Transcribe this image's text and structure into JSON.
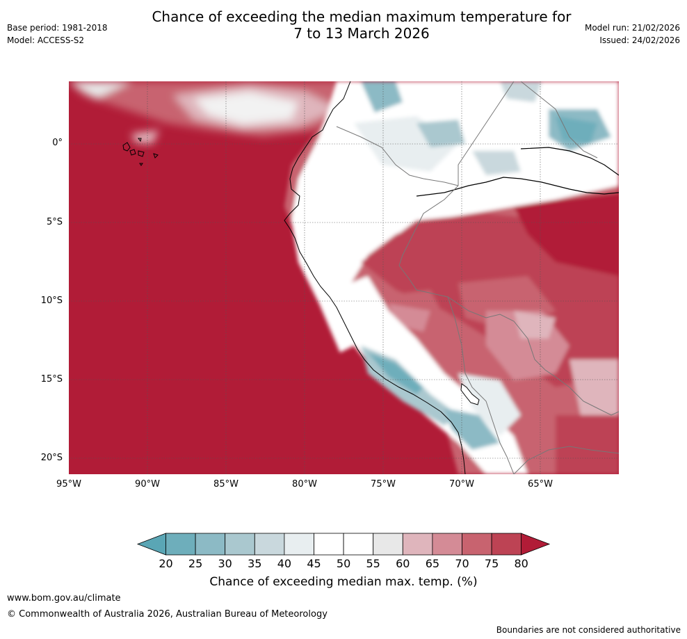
{
  "header": {
    "title_line1": "Chance of exceeding the median maximum temperature for",
    "title_line2": "7 to 13 March 2026",
    "base_period": "Base period: 1981-2018",
    "model": "Model: ACCESS-S2",
    "model_run": "Model run: 21/02/2026",
    "issued": "Issued: 24/02/2026"
  },
  "map": {
    "latitude_labels": [
      "0°",
      "5°S",
      "10°S",
      "15°S",
      "20°S"
    ],
    "longitude_labels": [
      "95°W",
      "90°W",
      "85°W",
      "80°W",
      "75°W",
      "70°W",
      "65°W"
    ],
    "ocean_color": "#b11c37"
  },
  "colorbar": {
    "tick_labels": [
      "20",
      "25",
      "30",
      "35",
      "40",
      "45",
      "50",
      "55",
      "60",
      "65",
      "70",
      "75",
      "80"
    ],
    "colors": [
      "#5aa6b5",
      "#6eaebb",
      "#8cbac5",
      "#aac8cf",
      "#c9d8dd",
      "#e8eef0",
      "#ffffff",
      "#ffffff",
      "#e8e8e8",
      "#dfb5bc",
      "#d48b96",
      "#c8636f",
      "#bd4354",
      "#b11c37"
    ],
    "label": "Chance of exceeding median max. temp. (%)"
  },
  "footer": {
    "website": "www.bom.gov.au/climate",
    "copyright": "© Commonwealth of Australia 2026, Australian Bureau of Meteorology",
    "disclaimer": "Boundaries are not considered authoritative"
  }
}
